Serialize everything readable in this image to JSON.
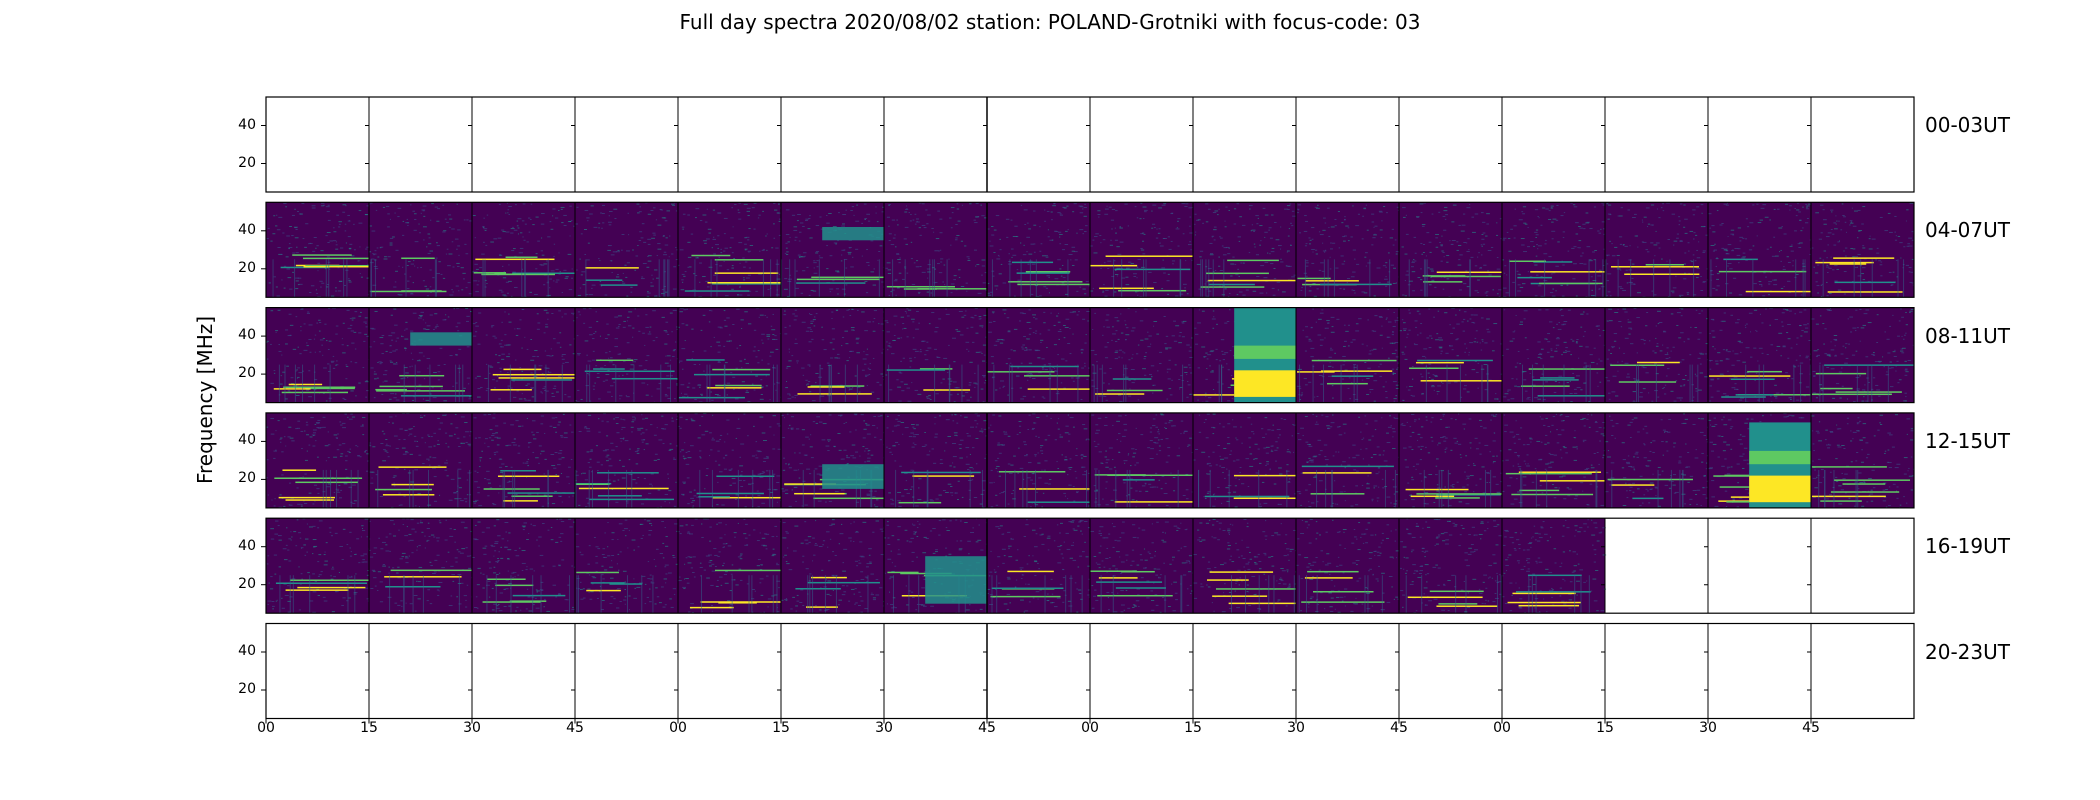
{
  "chart_data": {
    "type": "heatmap",
    "title": "Full day spectra 2020/08/02 station: POLAND-Grotniki with focus-code: 03",
    "ylabel": "Frequency [MHz]",
    "xlabel": "",
    "ylim": [
      5,
      55
    ],
    "yticks": [
      "20",
      "40"
    ],
    "ytick_values": [
      20,
      40
    ],
    "xtick_labels": [
      "00",
      "15",
      "30",
      "45",
      "00",
      "15",
      "30",
      "45",
      "00",
      "15",
      "30",
      "45",
      "00",
      "15",
      "30",
      "45"
    ],
    "colormap": "viridis",
    "colors": {
      "low": "#440154",
      "mid": "#21908c",
      "high": "#fde725"
    },
    "rows": [
      {
        "label": "00-03UT",
        "data_panels": 0,
        "features": []
      },
      {
        "label": "04-07UT",
        "data_panels": 16,
        "features": [
          {
            "panel": 5,
            "type": "band",
            "fmin": 35,
            "fmax": 42
          }
        ]
      },
      {
        "label": "08-11UT",
        "data_panels": 16,
        "features": [
          {
            "panel": 1,
            "type": "band",
            "fmin": 35,
            "fmax": 42
          },
          {
            "panel": 9,
            "type": "strong",
            "fmin": 5,
            "fmax": 55
          }
        ]
      },
      {
        "label": "12-15UT",
        "data_panels": 16,
        "features": [
          {
            "panel": 5,
            "type": "band",
            "fmin": 15,
            "fmax": 28
          },
          {
            "panel": 14,
            "type": "strong",
            "fmin": 5,
            "fmax": 50
          }
        ]
      },
      {
        "label": "16-19UT",
        "data_panels": 13,
        "features": [
          {
            "panel": 6,
            "type": "band",
            "fmin": 10,
            "fmax": 35
          }
        ]
      },
      {
        "label": "20-23UT",
        "data_panels": 0,
        "features": []
      }
    ],
    "panels_per_row": 16
  }
}
